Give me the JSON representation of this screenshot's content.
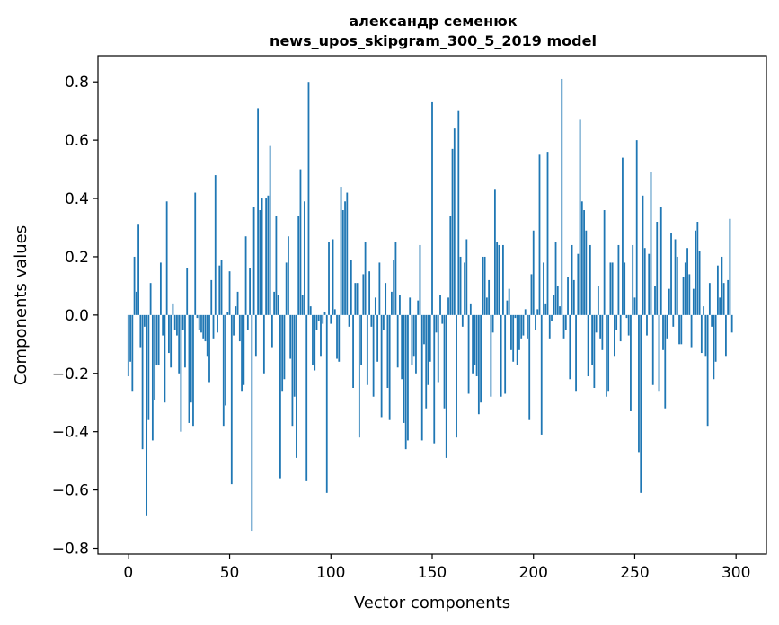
{
  "chart_data": {
    "type": "bar",
    "title_line1": "александр семенюк",
    "title_line2": "news_upos_skipgram_300_5_2019 model",
    "xlabel": "Vector components",
    "ylabel": "Components values",
    "xlim": [
      -15,
      315
    ],
    "ylim": [
      -0.82,
      0.89
    ],
    "xticks": [
      0,
      50,
      100,
      150,
      200,
      250,
      300
    ],
    "xtick_labels": [
      "0",
      "50",
      "100",
      "150",
      "200",
      "250",
      "300"
    ],
    "yticks": [
      -0.8,
      -0.6,
      -0.4,
      -0.2,
      0.0,
      0.2,
      0.4,
      0.6,
      0.8
    ],
    "ytick_labels": [
      "−0.8",
      "−0.6",
      "−0.4",
      "−0.2",
      "0.0",
      "0.2",
      "0.4",
      "0.6",
      "0.8"
    ],
    "bar_color": "#1f77b4",
    "grid": false,
    "legend": "none",
    "values": [
      -0.21,
      -0.16,
      -0.26,
      0.2,
      0.08,
      0.31,
      -0.11,
      -0.46,
      -0.04,
      -0.69,
      -0.36,
      0.11,
      -0.43,
      -0.29,
      -0.17,
      -0.17,
      0.18,
      -0.07,
      -0.3,
      0.39,
      -0.13,
      -0.18,
      0.04,
      -0.05,
      -0.07,
      -0.2,
      -0.4,
      -0.05,
      -0.18,
      0.16,
      -0.37,
      -0.3,
      -0.38,
      0.42,
      -0.01,
      -0.05,
      -0.06,
      -0.08,
      -0.09,
      -0.14,
      -0.23,
      0.12,
      -0.08,
      0.48,
      -0.06,
      0.17,
      0.19,
      -0.38,
      -0.31,
      0.01,
      0.15,
      -0.58,
      -0.07,
      0.03,
      0.08,
      -0.09,
      -0.26,
      -0.24,
      0.27,
      -0.05,
      0.16,
      -0.74,
      0.37,
      -0.14,
      0.71,
      0.36,
      0.4,
      -0.2,
      0.4,
      0.41,
      0.58,
      -0.11,
      0.08,
      0.34,
      0.07,
      -0.56,
      -0.26,
      -0.22,
      0.18,
      0.27,
      -0.15,
      -0.38,
      -0.28,
      -0.49,
      0.34,
      0.5,
      0.07,
      0.39,
      -0.57,
      0.8,
      0.03,
      -0.17,
      -0.19,
      -0.05,
      -0.02,
      -0.14,
      -0.03,
      0.01,
      -0.61,
      0.25,
      -0.03,
      0.26,
      0.02,
      -0.15,
      -0.16,
      0.44,
      0.36,
      0.39,
      0.42,
      -0.04,
      0.19,
      -0.25,
      0.11,
      0.11,
      -0.42,
      -0.17,
      0.14,
      0.25,
      -0.24,
      0.15,
      -0.04,
      -0.28,
      0.06,
      -0.16,
      0.18,
      -0.35,
      -0.05,
      0.11,
      -0.25,
      -0.36,
      0.08,
      0.19,
      0.25,
      -0.18,
      0.07,
      -0.22,
      -0.37,
      -0.46,
      -0.43,
      0.06,
      -0.17,
      -0.14,
      -0.2,
      0.05,
      0.24,
      -0.43,
      -0.1,
      -0.32,
      -0.24,
      -0.16,
      0.73,
      -0.44,
      -0.06,
      -0.23,
      0.07,
      -0.03,
      -0.32,
      -0.49,
      0.06,
      0.34,
      0.57,
      0.64,
      -0.42,
      0.7,
      0.2,
      -0.04,
      0.18,
      0.26,
      -0.27,
      0.04,
      -0.2,
      -0.17,
      -0.21,
      -0.34,
      -0.3,
      0.2,
      0.2,
      0.06,
      0.12,
      -0.28,
      -0.06,
      0.43,
      0.25,
      0.24,
      -0.28,
      0.24,
      -0.27,
      0.05,
      0.09,
      -0.12,
      -0.16,
      -0.01,
      -0.17,
      -0.12,
      -0.08,
      -0.07,
      0.02,
      -0.08,
      -0.36,
      0.14,
      0.29,
      -0.05,
      0.02,
      0.55,
      -0.41,
      0.18,
      0.04,
      0.56,
      -0.08,
      -0.02,
      0.07,
      0.25,
      0.1,
      0.03,
      0.81,
      -0.08,
      -0.05,
      0.13,
      -0.22,
      0.24,
      0.12,
      -0.26,
      0.21,
      0.67,
      0.39,
      0.36,
      0.29,
      -0.21,
      0.24,
      -0.17,
      -0.25,
      -0.06,
      0.1,
      -0.08,
      -0.12,
      0.36,
      -0.28,
      -0.26,
      0.18,
      0.18,
      -0.14,
      -0.05,
      0.24,
      -0.09,
      0.54,
      0.18,
      -0.01,
      -0.07,
      -0.33,
      0.24,
      0.06,
      0.6,
      -0.47,
      -0.61,
      0.41,
      0.23,
      -0.07,
      0.21,
      0.49,
      -0.24,
      0.1,
      0.32,
      -0.26,
      0.37,
      -0.12,
      -0.32,
      -0.08,
      0.09,
      0.28,
      -0.04,
      0.26,
      0.2,
      -0.1,
      -0.1,
      0.13,
      0.18,
      0.23,
      0.14,
      -0.11,
      0.09,
      0.29,
      0.32,
      0.22,
      -0.13,
      0.03,
      -0.14,
      -0.38,
      0.11,
      -0.04,
      -0.22,
      -0.16,
      0.17,
      0.06,
      0.2,
      0.11,
      -0.14,
      0.12,
      0.33,
      -0.06
    ]
  }
}
